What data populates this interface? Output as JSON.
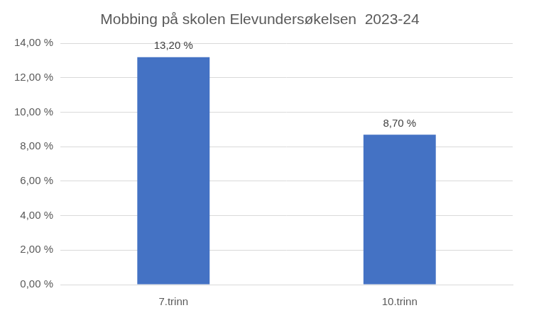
{
  "chart_data": {
    "type": "bar",
    "title": "Mobbing på skolen Elevundersøkelsen  2023-24",
    "categories": [
      "7.trinn",
      "10.trinn"
    ],
    "values": [
      13.2,
      8.7
    ],
    "value_labels": [
      "13,20 %",
      "8,70 %"
    ],
    "color": "#4472c4",
    "ylim": [
      0,
      14
    ],
    "yticks": [
      {
        "value": 0,
        "label": "0,00 %"
      },
      {
        "value": 2,
        "label": "2,00 %"
      },
      {
        "value": 4,
        "label": "4,00 %"
      },
      {
        "value": 6,
        "label": "6,00 %"
      },
      {
        "value": 8,
        "label": "8,00 %"
      },
      {
        "value": 10,
        "label": "10,00 %"
      },
      {
        "value": 12,
        "label": "12,00 %"
      },
      {
        "value": 14,
        "label": "14,00 %"
      }
    ],
    "grid": true,
    "data_labels": true
  }
}
